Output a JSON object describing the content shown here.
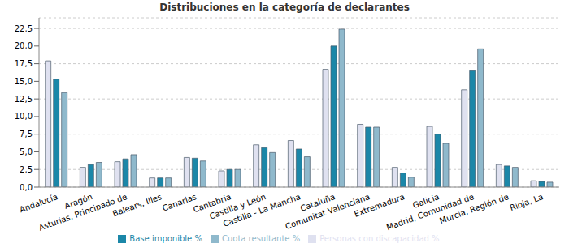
{
  "chart_data": {
    "type": "bar",
    "title": "Distribuciones en la categoría de declarantes",
    "categories": [
      "Andalucía",
      "Aragón",
      "Asturias, Principado de",
      "Balears, Illes",
      "Canarias",
      "Cantabria",
      "Castilla y León",
      "Castilla - La Mancha",
      "Cataluña",
      "Comunitat Valenciana",
      "Extremadura",
      "Galicia",
      "Madrid, Comunidad de",
      "Murcia, Región de",
      "Rioja, La"
    ],
    "series": [
      {
        "name": "Personas con discapacidad %",
        "color": "#dfe1f0",
        "values": [
          17.9,
          2.8,
          3.6,
          1.3,
          4.2,
          2.3,
          6.0,
          6.6,
          16.7,
          8.9,
          2.8,
          8.6,
          13.8,
          3.2,
          0.9
        ]
      },
      {
        "name": "Base imponible %",
        "color": "#1b87a8",
        "values": [
          15.3,
          3.2,
          4.0,
          1.3,
          4.1,
          2.5,
          5.6,
          5.4,
          20.0,
          8.5,
          2.0,
          7.5,
          16.5,
          3.0,
          0.8
        ]
      },
      {
        "name": "Cuota resultante %",
        "color": "#8fb9cc",
        "values": [
          13.4,
          3.5,
          4.6,
          1.3,
          3.7,
          2.5,
          4.9,
          4.3,
          22.4,
          8.5,
          1.4,
          6.2,
          19.6,
          2.8,
          0.7
        ]
      }
    ],
    "ylim": [
      0,
      24
    ],
    "yticks": [
      {
        "value": 0,
        "label": "0,0"
      },
      {
        "value": 2.5,
        "label": "2,5"
      },
      {
        "value": 5,
        "label": "5,0"
      },
      {
        "value": 7.5,
        "label": "7,5"
      },
      {
        "value": 10,
        "label": "10,0"
      },
      {
        "value": 12.5,
        "label": "12,5"
      },
      {
        "value": 15,
        "label": "15,0"
      },
      {
        "value": 17.5,
        "label": "17,5"
      },
      {
        "value": 20,
        "label": "20,0"
      },
      {
        "value": 22.5,
        "label": "22,5"
      }
    ],
    "grid": true,
    "legend": "bottom"
  }
}
